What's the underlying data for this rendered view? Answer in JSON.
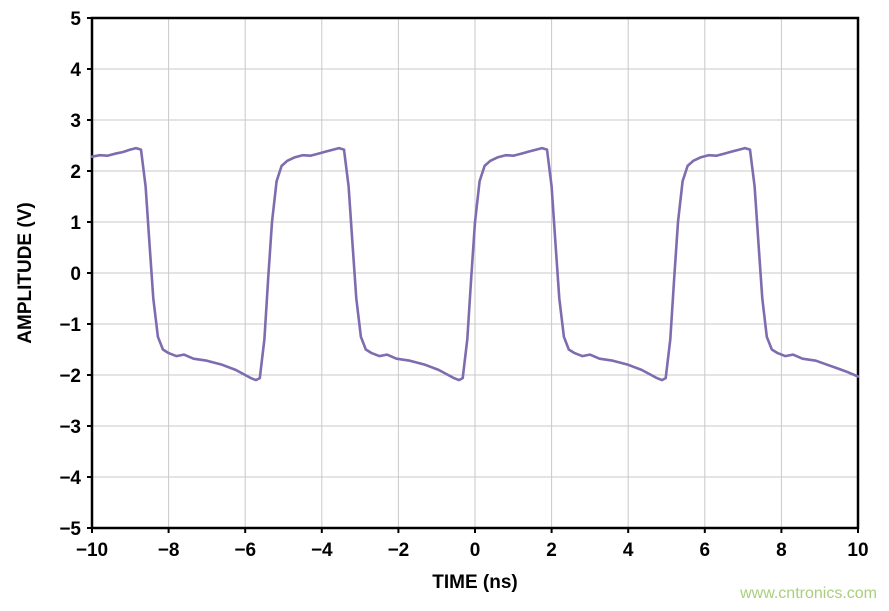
{
  "watermark": {
    "text": "www.cntronics.com",
    "color": "#a9cf7d"
  },
  "chart_data": {
    "type": "line",
    "title": "",
    "xlabel": "TIME (ns)",
    "ylabel": "AMPLITUDE (V)",
    "xlim": [
      -10,
      10
    ],
    "ylim": [
      -5,
      5
    ],
    "grid": true,
    "grid_color": "#c9c9c9",
    "border_color": "#000000",
    "line_color": "#7e6caf",
    "line_width": 2.6,
    "legend": "none",
    "xticks": [
      -10,
      -8,
      -6,
      -4,
      -2,
      0,
      2,
      4,
      6,
      8,
      10
    ],
    "yticks": [
      5,
      4,
      3,
      2,
      1,
      0,
      -1,
      -2,
      -3,
      -4,
      -5
    ],
    "xtick_labels": [
      "−10",
      "−8",
      "−6",
      "−4",
      "−2",
      "0",
      "2",
      "4",
      "6",
      "8",
      "10"
    ],
    "ytick_labels": [
      "5",
      "4",
      "3",
      "2",
      "1",
      "0",
      "−1",
      "−2",
      "−3",
      "−4",
      "−5"
    ],
    "series": [
      {
        "name": "amplitude",
        "points": [
          [
            -10.0,
            2.28
          ],
          [
            -9.8,
            2.31
          ],
          [
            -9.6,
            2.3
          ],
          [
            -9.4,
            2.34
          ],
          [
            -9.2,
            2.37
          ],
          [
            -9.0,
            2.42
          ],
          [
            -8.85,
            2.45
          ],
          [
            -8.72,
            2.42
          ],
          [
            -8.6,
            1.7
          ],
          [
            -8.5,
            0.6
          ],
          [
            -8.4,
            -0.5
          ],
          [
            -8.28,
            -1.25
          ],
          [
            -8.15,
            -1.5
          ],
          [
            -8.0,
            -1.57
          ],
          [
            -7.8,
            -1.63
          ],
          [
            -7.6,
            -1.6
          ],
          [
            -7.35,
            -1.68
          ],
          [
            -7.0,
            -1.72
          ],
          [
            -6.6,
            -1.8
          ],
          [
            -6.25,
            -1.9
          ],
          [
            -6.0,
            -2.0
          ],
          [
            -5.85,
            -2.06
          ],
          [
            -5.72,
            -2.1
          ],
          [
            -5.62,
            -2.06
          ],
          [
            -5.5,
            -1.3
          ],
          [
            -5.4,
            -0.1
          ],
          [
            -5.3,
            1.0
          ],
          [
            -5.18,
            1.8
          ],
          [
            -5.05,
            2.1
          ],
          [
            -4.9,
            2.2
          ],
          [
            -4.7,
            2.27
          ],
          [
            -4.5,
            2.31
          ],
          [
            -4.3,
            2.3
          ],
          [
            -4.1,
            2.34
          ],
          [
            -3.9,
            2.38
          ],
          [
            -3.7,
            2.42
          ],
          [
            -3.55,
            2.45
          ],
          [
            -3.42,
            2.42
          ],
          [
            -3.3,
            1.7
          ],
          [
            -3.2,
            0.6
          ],
          [
            -3.1,
            -0.5
          ],
          [
            -2.98,
            -1.25
          ],
          [
            -2.85,
            -1.5
          ],
          [
            -2.7,
            -1.57
          ],
          [
            -2.5,
            -1.63
          ],
          [
            -2.3,
            -1.6
          ],
          [
            -2.05,
            -1.68
          ],
          [
            -1.7,
            -1.72
          ],
          [
            -1.3,
            -1.8
          ],
          [
            -0.95,
            -1.9
          ],
          [
            -0.7,
            -2.0
          ],
          [
            -0.55,
            -2.06
          ],
          [
            -0.42,
            -2.1
          ],
          [
            -0.32,
            -2.06
          ],
          [
            -0.2,
            -1.3
          ],
          [
            -0.1,
            -0.1
          ],
          [
            0.0,
            1.0
          ],
          [
            0.12,
            1.8
          ],
          [
            0.25,
            2.1
          ],
          [
            0.4,
            2.2
          ],
          [
            0.6,
            2.27
          ],
          [
            0.8,
            2.31
          ],
          [
            1.0,
            2.3
          ],
          [
            1.2,
            2.34
          ],
          [
            1.4,
            2.38
          ],
          [
            1.6,
            2.42
          ],
          [
            1.75,
            2.45
          ],
          [
            1.88,
            2.42
          ],
          [
            2.0,
            1.7
          ],
          [
            2.1,
            0.6
          ],
          [
            2.2,
            -0.5
          ],
          [
            2.32,
            -1.25
          ],
          [
            2.45,
            -1.5
          ],
          [
            2.6,
            -1.57
          ],
          [
            2.8,
            -1.63
          ],
          [
            3.0,
            -1.6
          ],
          [
            3.25,
            -1.68
          ],
          [
            3.6,
            -1.72
          ],
          [
            4.0,
            -1.8
          ],
          [
            4.35,
            -1.9
          ],
          [
            4.6,
            -2.0
          ],
          [
            4.75,
            -2.06
          ],
          [
            4.88,
            -2.1
          ],
          [
            4.98,
            -2.06
          ],
          [
            5.1,
            -1.3
          ],
          [
            5.2,
            -0.1
          ],
          [
            5.3,
            1.0
          ],
          [
            5.42,
            1.8
          ],
          [
            5.55,
            2.1
          ],
          [
            5.7,
            2.2
          ],
          [
            5.9,
            2.27
          ],
          [
            6.1,
            2.31
          ],
          [
            6.3,
            2.3
          ],
          [
            6.5,
            2.34
          ],
          [
            6.7,
            2.38
          ],
          [
            6.9,
            2.42
          ],
          [
            7.05,
            2.45
          ],
          [
            7.18,
            2.42
          ],
          [
            7.3,
            1.7
          ],
          [
            7.4,
            0.6
          ],
          [
            7.5,
            -0.5
          ],
          [
            7.62,
            -1.25
          ],
          [
            7.75,
            -1.5
          ],
          [
            7.9,
            -1.57
          ],
          [
            8.1,
            -1.63
          ],
          [
            8.3,
            -1.6
          ],
          [
            8.55,
            -1.68
          ],
          [
            8.9,
            -1.72
          ],
          [
            9.2,
            -1.8
          ],
          [
            9.5,
            -1.88
          ],
          [
            9.75,
            -1.95
          ],
          [
            10.0,
            -2.03
          ]
        ]
      }
    ]
  }
}
